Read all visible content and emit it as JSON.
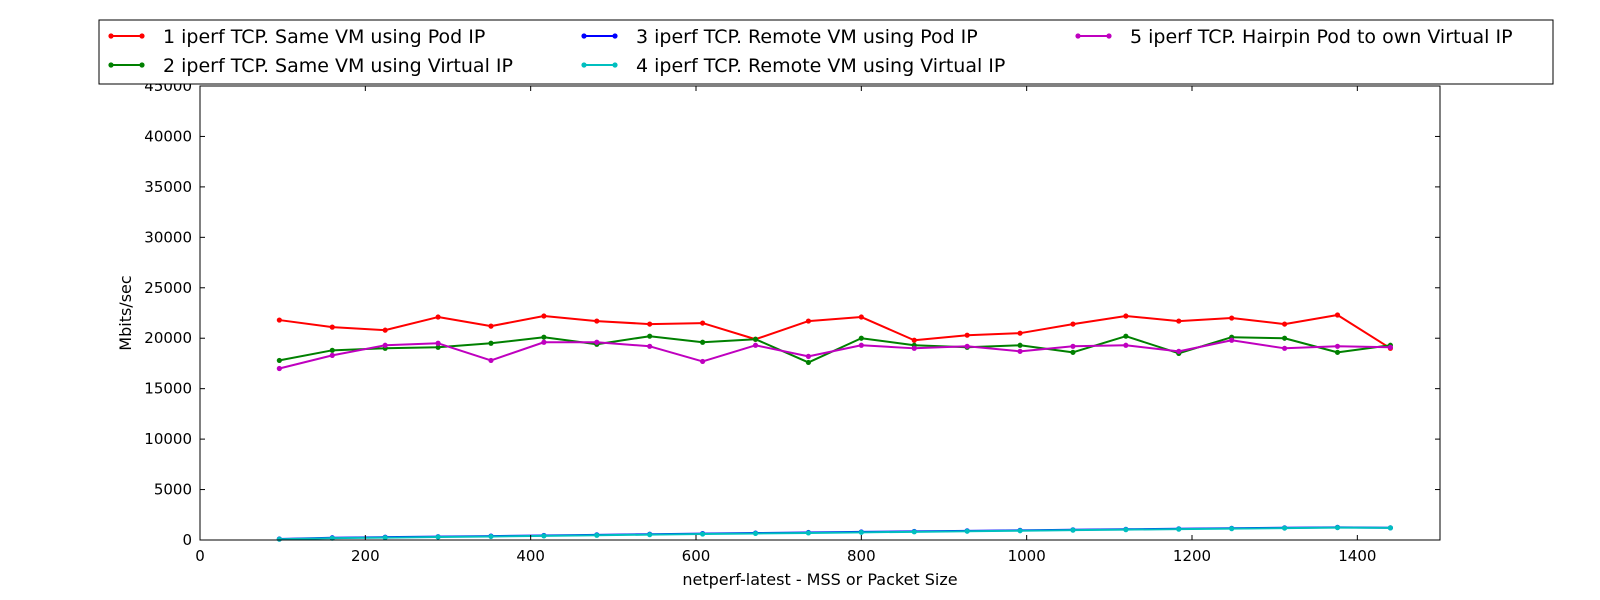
{
  "chart_data": {
    "type": "line",
    "title": "",
    "xlabel": "netperf-latest - MSS or Packet Size",
    "ylabel": "Mbits/sec",
    "xlim": [
      0,
      1500
    ],
    "ylim": [
      0,
      45000
    ],
    "xticks": [
      0,
      200,
      400,
      600,
      800,
      1000,
      1200,
      1400
    ],
    "yticks": [
      0,
      5000,
      10000,
      15000,
      20000,
      25000,
      30000,
      35000,
      40000,
      45000
    ],
    "grid": false,
    "legend_position": "top",
    "x": [
      96,
      160,
      224,
      288,
      352,
      416,
      480,
      544,
      608,
      672,
      736,
      800,
      864,
      928,
      992,
      1056,
      1120,
      1184,
      1248,
      1312,
      1376,
      1440
    ],
    "series": [
      {
        "name": "1 iperf TCP. Same VM using Pod IP",
        "color": "#ff0000",
        "values": [
          21800,
          21100,
          20800,
          22100,
          21200,
          22200,
          21700,
          21400,
          21500,
          19900,
          21700,
          22100,
          19800,
          20300,
          20500,
          21400,
          22200,
          21700,
          22000,
          21400,
          22300,
          19000
        ]
      },
      {
        "name": "2 iperf TCP. Same VM using Virtual IP",
        "color": "#008000",
        "values": [
          17800,
          18800,
          19000,
          19100,
          19500,
          20100,
          19400,
          20200,
          19600,
          19900,
          17600,
          20000,
          19300,
          19100,
          19300,
          18600,
          20200,
          18500,
          20100,
          20000,
          18600,
          19300
        ]
      },
      {
        "name": "3 iperf TCP. Remote VM using Pod IP",
        "color": "#0000ff",
        "values": [
          100,
          220,
          280,
          330,
          390,
          450,
          510,
          570,
          630,
          690,
          740,
          800,
          850,
          910,
          960,
          1010,
          1060,
          1110,
          1160,
          1210,
          1250,
          1210
        ]
      },
      {
        "name": "4 iperf TCP. Remote VM using Virtual IP",
        "color": "#00bfbf",
        "values": [
          80,
          180,
          240,
          300,
          350,
          410,
          470,
          530,
          590,
          650,
          700,
          760,
          810,
          870,
          920,
          980,
          1030,
          1080,
          1130,
          1180,
          1230,
          1200
        ]
      },
      {
        "name": "5 iperf TCP. Hairpin Pod to own Virtual IP",
        "color": "#bf00bf",
        "values": [
          17000,
          18300,
          19300,
          19500,
          17800,
          19600,
          19600,
          19200,
          17700,
          19300,
          18200,
          19300,
          19000,
          19200,
          18700,
          19200,
          19300,
          18700,
          19800,
          19000,
          19200,
          19100
        ]
      }
    ]
  }
}
